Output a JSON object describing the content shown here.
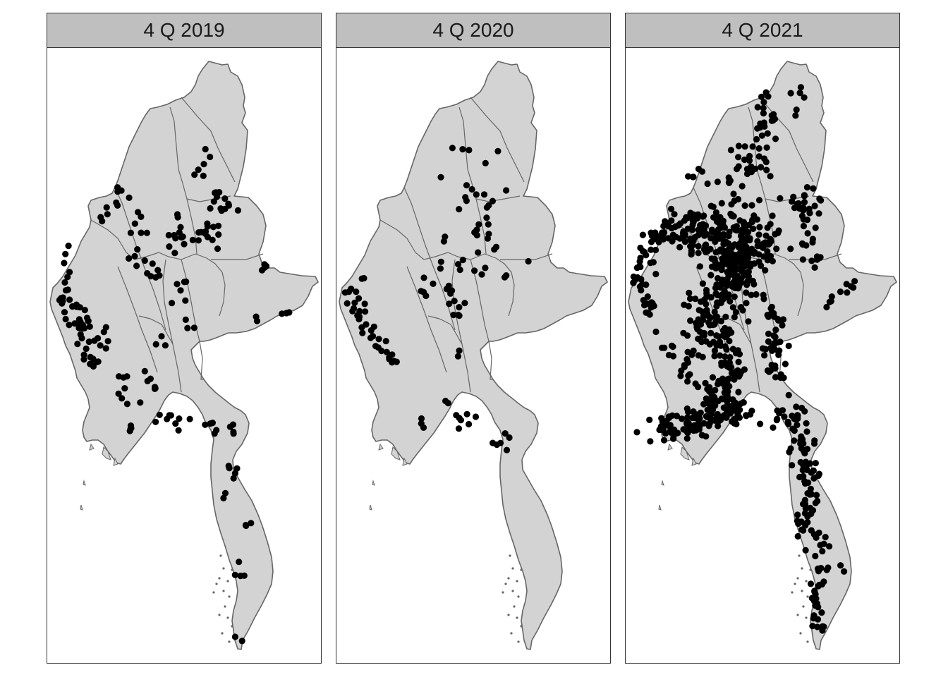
{
  "chart_data": {
    "type": "map",
    "facet_titles": [
      "4 Q 2019",
      "4 Q 2020",
      "4 Q 2021"
    ],
    "colors": {
      "country_fill": "#d3d3d3",
      "border": "#666666",
      "points": "#000000",
      "strip": "#bfbfbf"
    },
    "point_density": {
      "4 Q 2019": "moderate; concentrated along west coast, north-east highlands, central valley and south-east",
      "4 Q 2020": "sparse; clusters on west coast and scattered central points",
      "4 Q 2021": "very dense; heavy concentration across central region, northern corridor and the south-east coast"
    },
    "point_counts_approx": {
      "4 Q 2019": 190,
      "4 Q 2020": 95,
      "4 Q 2021": 900
    }
  }
}
